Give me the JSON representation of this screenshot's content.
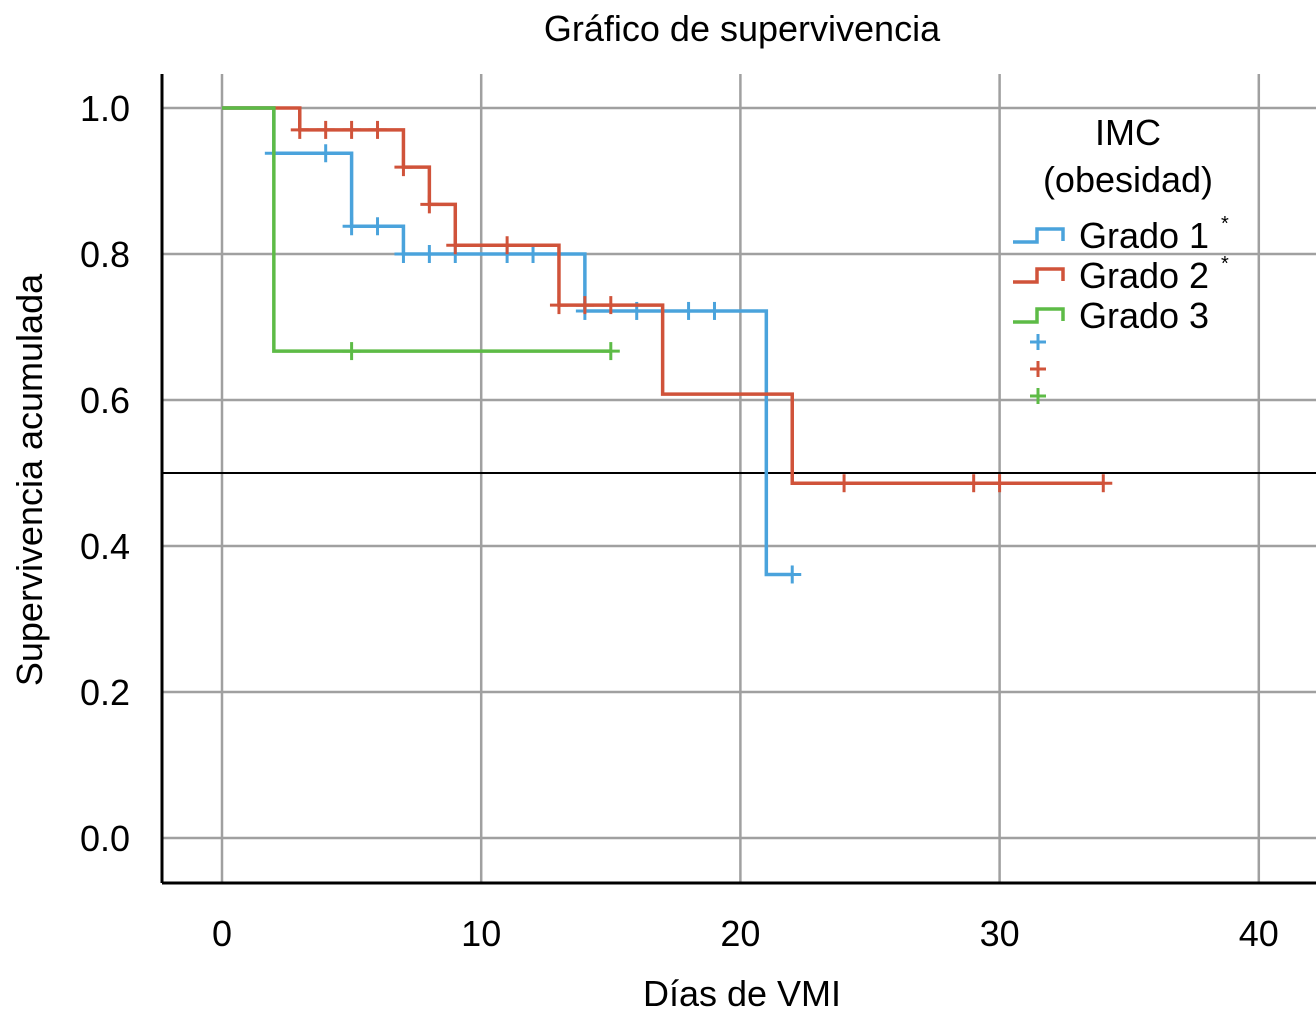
{
  "chart_data": {
    "type": "line",
    "subtype": "kaplan-meier-step",
    "title": "Gráfico de supervivencia",
    "xlabel": "Días de VMI",
    "ylabel": "Supervivencia acumulada",
    "xlim": [
      -2.3,
      42.2
    ],
    "ylim": [
      -0.06,
      1.05
    ],
    "xticks": [
      0,
      10,
      20,
      30,
      40
    ],
    "xtick_labels": [
      "0",
      "10",
      "20",
      "30",
      "40"
    ],
    "yticks": [
      0.0,
      0.2,
      0.4,
      0.6,
      0.8,
      1.0
    ],
    "ytick_labels": [
      "0.0",
      "0.2",
      "0.4",
      "0.6",
      "0.8",
      "1.0"
    ],
    "grid": true,
    "reference_line": {
      "y": 0.5,
      "color": "#000000"
    },
    "legend": {
      "title_line1": "IMC",
      "title_line2": "(obesidad)",
      "placement": "top-right"
    },
    "series": [
      {
        "name": "Grado 1",
        "label": "Grado 1",
        "marker": "*",
        "color": "#4aa3dc",
        "steps": [
          [
            0,
            1.0
          ],
          [
            2,
            0.938
          ],
          [
            5,
            0.838
          ],
          [
            7,
            0.8
          ],
          [
            14,
            0.722
          ],
          [
            21,
            0.361
          ]
        ],
        "end_x": 22,
        "censored": [
          [
            2,
            0.938
          ],
          [
            4,
            0.938
          ],
          [
            5,
            0.838
          ],
          [
            6,
            0.838
          ],
          [
            7,
            0.8
          ],
          [
            8,
            0.8
          ],
          [
            9,
            0.8
          ],
          [
            11,
            0.8
          ],
          [
            12,
            0.8
          ],
          [
            14,
            0.722
          ],
          [
            16,
            0.722
          ],
          [
            18,
            0.722
          ],
          [
            19,
            0.722
          ],
          [
            22,
            0.361
          ]
        ]
      },
      {
        "name": "Grado 2",
        "label": "Grado 2",
        "marker": "*",
        "color": "#d0533a",
        "steps": [
          [
            0,
            1.0
          ],
          [
            3,
            0.97
          ],
          [
            7,
            0.919
          ],
          [
            8,
            0.868
          ],
          [
            9,
            0.812
          ],
          [
            13,
            0.73
          ],
          [
            17,
            0.608
          ],
          [
            22,
            0.486
          ]
        ],
        "end_x": 34,
        "censored": [
          [
            3,
            0.97
          ],
          [
            4,
            0.97
          ],
          [
            5,
            0.97
          ],
          [
            6,
            0.97
          ],
          [
            7,
            0.919
          ],
          [
            8,
            0.868
          ],
          [
            9,
            0.812
          ],
          [
            11,
            0.812
          ],
          [
            13,
            0.73
          ],
          [
            14,
            0.73
          ],
          [
            15,
            0.73
          ],
          [
            24,
            0.486
          ],
          [
            29,
            0.486
          ],
          [
            30,
            0.486
          ],
          [
            34,
            0.486
          ]
        ]
      },
      {
        "name": "Grado 3",
        "label": "Grado 3",
        "marker": "",
        "color": "#5dbb46",
        "steps": [
          [
            0,
            1.0
          ],
          [
            2,
            0.667
          ]
        ],
        "end_x": 15,
        "censored": [
          [
            5,
            0.667
          ],
          [
            15,
            0.667
          ]
        ]
      }
    ]
  }
}
